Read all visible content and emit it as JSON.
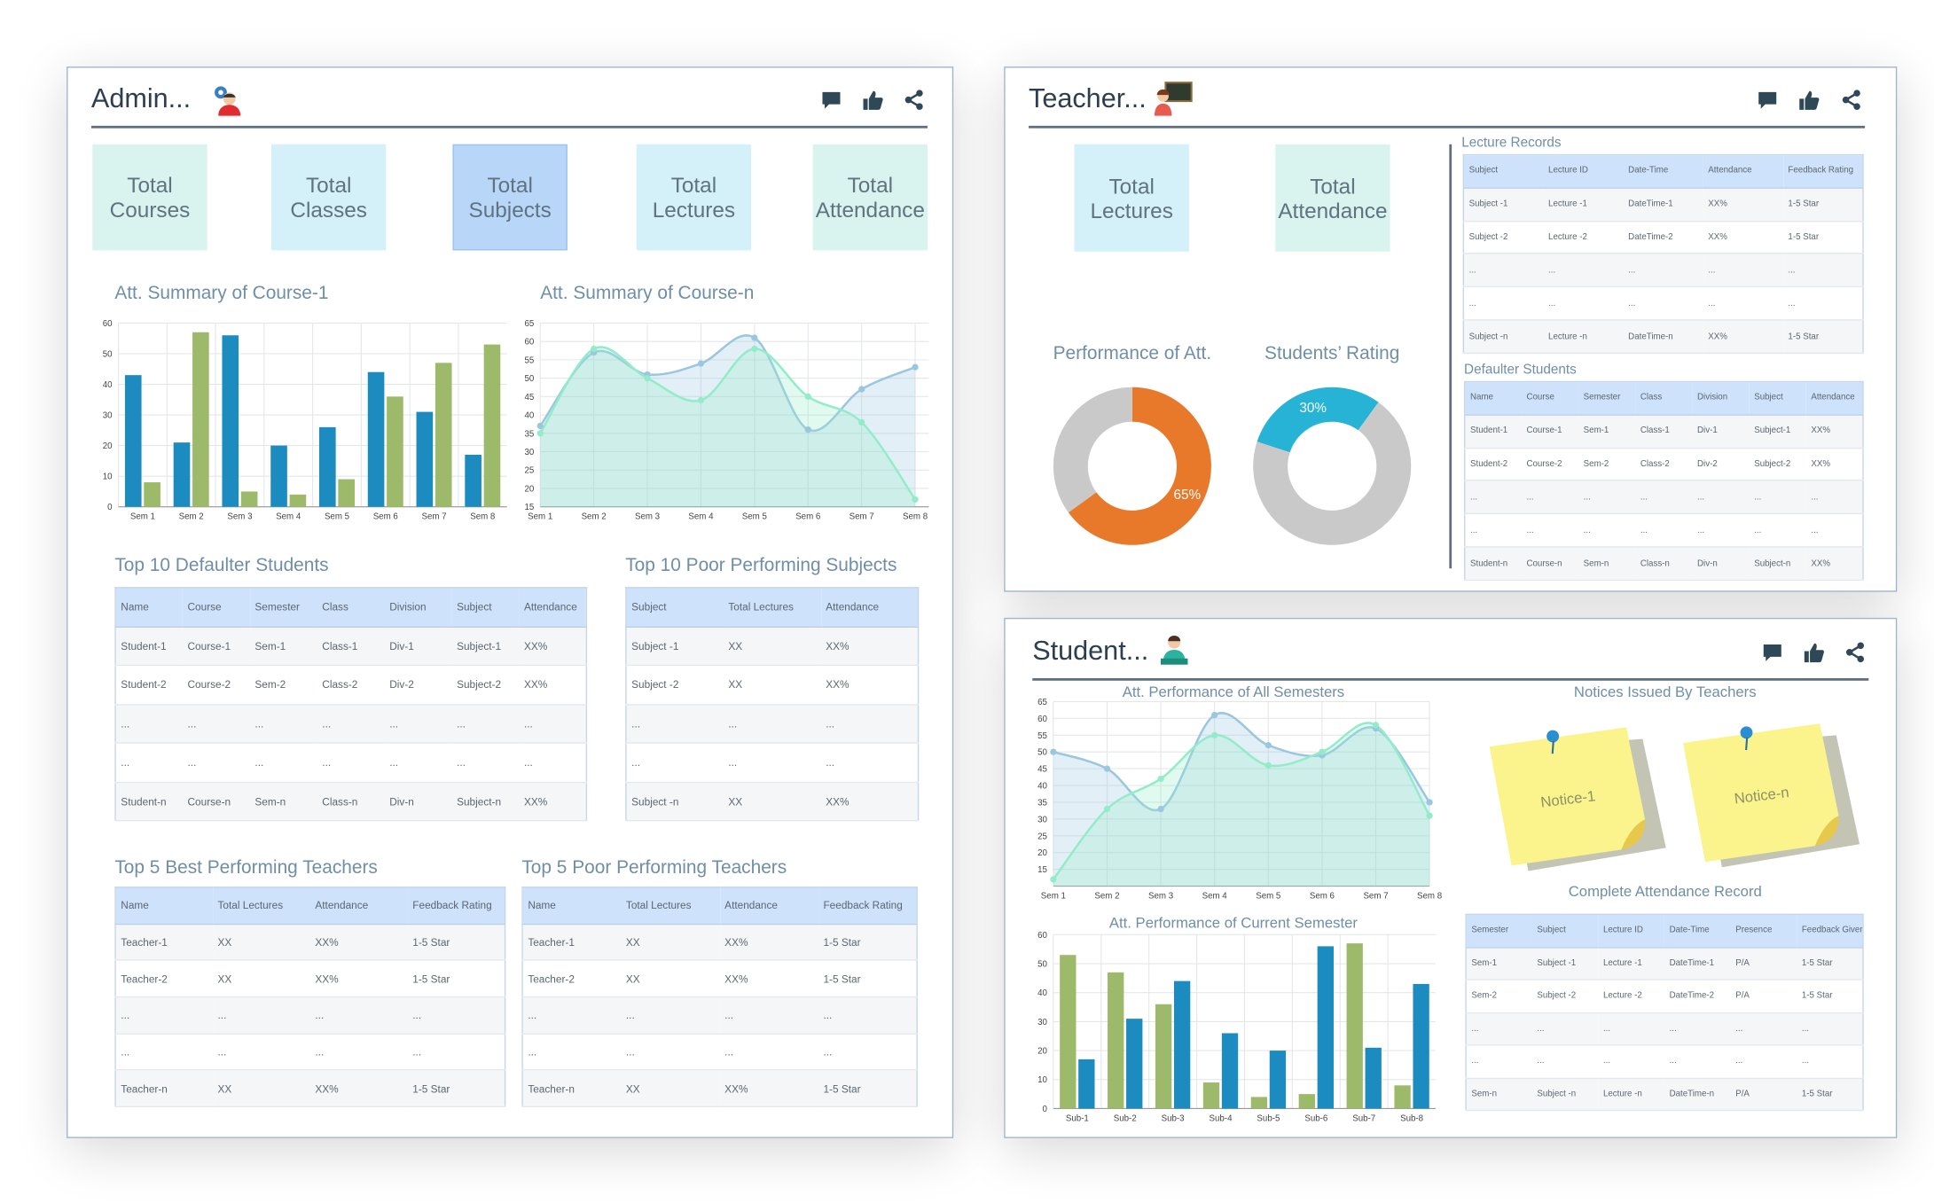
{
  "admin": {
    "title": "Admin...",
    "tiles": [
      "Total Courses",
      "Total Classes",
      "Total Subjects",
      "Total Lectures",
      "Total Attendance"
    ],
    "charts": [
      {
        "type": "bar",
        "title": "Att. Summary of Course-1",
        "categories": [
          "Sem 1",
          "Sem 2",
          "Sem 3",
          "Sem 4",
          "Sem 5",
          "Sem 6",
          "Sem 7",
          "Sem 8"
        ],
        "series": [
          {
            "color": "#1c8cc0",
            "values": [
              43,
              21,
              56,
              20,
              26,
              44,
              31,
              17
            ]
          },
          {
            "color": "#9dba6a",
            "values": [
              8,
              57,
              5,
              4,
              9,
              36,
              47,
              53
            ]
          }
        ],
        "ylim": [
          0,
          60
        ],
        "yticks": [
          0,
          10,
          20,
          30,
          40,
          50,
          60
        ],
        "grid": true
      },
      {
        "type": "line",
        "title": "Att. Summary of Course-n",
        "categories": [
          "Sem 1",
          "Sem 2",
          "Sem 3",
          "Sem 4",
          "Sem 5",
          "Sem 6",
          "Sem 7",
          "Sem 8"
        ],
        "series": [
          {
            "color": "#9ac6df",
            "values": [
              37,
              57,
              51,
              54,
              61,
              36,
              47,
              53
            ]
          },
          {
            "color": "#93ecc9",
            "values": [
              35,
              58,
              50,
              44,
              58,
              45,
              38,
              17
            ]
          }
        ],
        "ylim": [
          15,
          65
        ],
        "yticks": [
          15,
          20,
          25,
          30,
          35,
          40,
          45,
          50,
          55,
          60,
          65
        ],
        "grid": true
      }
    ],
    "tables": [
      {
        "title": "Top 10 Defaulter Students",
        "columns": [
          "Name",
          "Course",
          "Semester",
          "Class",
          "Division",
          "Subject",
          "Attendance"
        ],
        "rows": [
          [
            "Student-1",
            "Course-1",
            "Sem-1",
            "Class-1",
            "Div-1",
            "Subject-1",
            "XX%"
          ],
          [
            "Student-2",
            "Course-2",
            "Sem-2",
            "Class-2",
            "Div-2",
            "Subject-2",
            "XX%"
          ],
          [
            "...",
            "...",
            "...",
            "...",
            "...",
            "...",
            "..."
          ],
          [
            "...",
            "...",
            "...",
            "...",
            "...",
            "...",
            "..."
          ],
          [
            "Student-n",
            "Course-n",
            "Sem-n",
            "Class-n",
            "Div-n",
            "Subject-n",
            "XX%"
          ]
        ]
      },
      {
        "title": "Top 10 Poor Performing Subjects",
        "columns": [
          "Subject",
          "Total Lectures",
          "Attendance"
        ],
        "rows": [
          [
            "Subject -1",
            "XX",
            "XX%"
          ],
          [
            "Subject -2",
            "XX",
            "XX%"
          ],
          [
            "...",
            "...",
            "..."
          ],
          [
            "...",
            "...",
            "..."
          ],
          [
            "Subject -n",
            "XX",
            "XX%"
          ]
        ]
      },
      {
        "title": "Top 5 Best Performing Teachers",
        "columns": [
          "Name",
          "Total Lectures",
          "Attendance",
          "Feedback Rating"
        ],
        "rows": [
          [
            "Teacher-1",
            "XX",
            "XX%",
            "1-5 Star"
          ],
          [
            "Teacher-2",
            "XX",
            "XX%",
            "1-5 Star"
          ],
          [
            "...",
            "...",
            "...",
            "..."
          ],
          [
            "...",
            "...",
            "...",
            "..."
          ],
          [
            "Teacher-n",
            "XX",
            "XX%",
            "1-5 Star"
          ]
        ]
      },
      {
        "title": "Top 5 Poor Performing Teachers",
        "columns": [
          "Name",
          "Total Lectures",
          "Attendance",
          "Feedback Rating"
        ],
        "rows": [
          [
            "Teacher-1",
            "XX",
            "XX%",
            "1-5 Star"
          ],
          [
            "Teacher-2",
            "XX",
            "XX%",
            "1-5 Star"
          ],
          [
            "...",
            "...",
            "...",
            "..."
          ],
          [
            "...",
            "...",
            "...",
            "..."
          ],
          [
            "Teacher-n",
            "XX",
            "XX%",
            "1-5 Star"
          ]
        ]
      }
    ]
  },
  "teacher": {
    "title": "Teacher...",
    "tiles": [
      "Total Lectures",
      "Total Attendance"
    ],
    "charts": [
      {
        "type": "pie",
        "title": "Performance of Att.",
        "values": [
          65,
          35
        ],
        "value_labels": [
          "65%",
          null
        ],
        "colors": [
          "#e8792b",
          "#c9c9c9"
        ]
      },
      {
        "type": "pie",
        "title": "Students’ Rating",
        "values": [
          30,
          70
        ],
        "value_labels": [
          "30%",
          null
        ],
        "colors": [
          "#26b3d6",
          "#c9c9c9"
        ]
      }
    ],
    "tables": [
      {
        "title": "Lecture Records",
        "columns": [
          "Subject",
          "Lecture ID",
          "Date-Time",
          "Attendance",
          "Feedback Rating"
        ],
        "rows": [
          [
            "Subject -1",
            "Lecture -1",
            "DateTime-1",
            "XX%",
            "1-5 Star"
          ],
          [
            "Subject -2",
            "Lecture -2",
            "DateTime-2",
            "XX%",
            "1-5 Star"
          ],
          [
            "...",
            "...",
            "...",
            "...",
            "..."
          ],
          [
            "...",
            "...",
            "...",
            "...",
            "..."
          ],
          [
            "Subject -n",
            "Lecture -n",
            "DateTime-n",
            "XX%",
            "1-5 Star"
          ]
        ]
      },
      {
        "title": "Defaulter Students",
        "columns": [
          "Name",
          "Course",
          "Semester",
          "Class",
          "Division",
          "Subject",
          "Attendance"
        ],
        "rows": [
          [
            "Student-1",
            "Course-1",
            "Sem-1",
            "Class-1",
            "Div-1",
            "Subject-1",
            "XX%"
          ],
          [
            "Student-2",
            "Course-2",
            "Sem-2",
            "Class-2",
            "Div-2",
            "Subject-2",
            "XX%"
          ],
          [
            "...",
            "...",
            "...",
            "...",
            "...",
            "...",
            "..."
          ],
          [
            "...",
            "...",
            "...",
            "...",
            "...",
            "...",
            "..."
          ],
          [
            "Student-n",
            "Course-n",
            "Sem-n",
            "Class-n",
            "Div-n",
            "Subject-n",
            "XX%"
          ]
        ]
      }
    ]
  },
  "student": {
    "title": "Student...",
    "charts": [
      {
        "type": "line",
        "title": "Att. Performance of All Semesters",
        "categories": [
          "Sem 1",
          "Sem 2",
          "Sem 3",
          "Sem 4",
          "Sem 5",
          "Sem 6",
          "Sem 7",
          "Sem 8"
        ],
        "series": [
          {
            "color": "#9ac6df",
            "values": [
              50,
              45,
              33,
              61,
              52,
              49,
              57,
              35
            ]
          },
          {
            "color": "#93ecc9",
            "values": [
              12,
              33,
              42,
              55,
              46,
              50,
              58,
              31
            ]
          }
        ],
        "ylim": [
          10,
          65
        ],
        "yticks": [
          15,
          20,
          25,
          30,
          35,
          40,
          45,
          50,
          55,
          60,
          65
        ],
        "grid": true
      },
      {
        "type": "bar",
        "title": "Att. Performance of Current Semester",
        "categories": [
          "Sub-1",
          "Sub-2",
          "Sub-3",
          "Sub-4",
          "Sub-5",
          "Sub-6",
          "Sub-7",
          "Sub-8"
        ],
        "series": [
          {
            "color": "#9dba6a",
            "values": [
              53,
              47,
              36,
              9,
              4,
              5,
              57,
              8
            ]
          },
          {
            "color": "#1c8cc0",
            "values": [
              17,
              31,
              44,
              26,
              20,
              56,
              21,
              43
            ]
          }
        ],
        "ylim": [
          0,
          60
        ],
        "yticks": [
          0,
          10,
          20,
          30,
          40,
          50,
          60
        ],
        "grid": true
      }
    ],
    "notices": {
      "title": "Notices Issued By Teachers",
      "items": [
        "Notice-1",
        "Notice-n"
      ]
    },
    "tables": [
      {
        "title": "Complete Attendance Record",
        "columns": [
          "Semester",
          "Subject",
          "Lecture ID",
          "Date-Time",
          "Presence",
          "Feedback Given"
        ],
        "rows": [
          [
            "Sem-1",
            "Subject -1",
            "Lecture -1",
            "DateTime-1",
            "P/A",
            "1-5 Star"
          ],
          [
            "Sem-2",
            "Subject -2",
            "Lecture -2",
            "DateTime-2",
            "P/A",
            "1-5 Star"
          ],
          [
            "...",
            "...",
            "...",
            "...",
            "...",
            "..."
          ],
          [
            "...",
            "...",
            "...",
            "...",
            "...",
            "..."
          ],
          [
            "Sem-n",
            "Subject -n",
            "Lecture -n",
            "DateTime-n",
            "P/A",
            "1-5 Star"
          ]
        ]
      }
    ]
  }
}
